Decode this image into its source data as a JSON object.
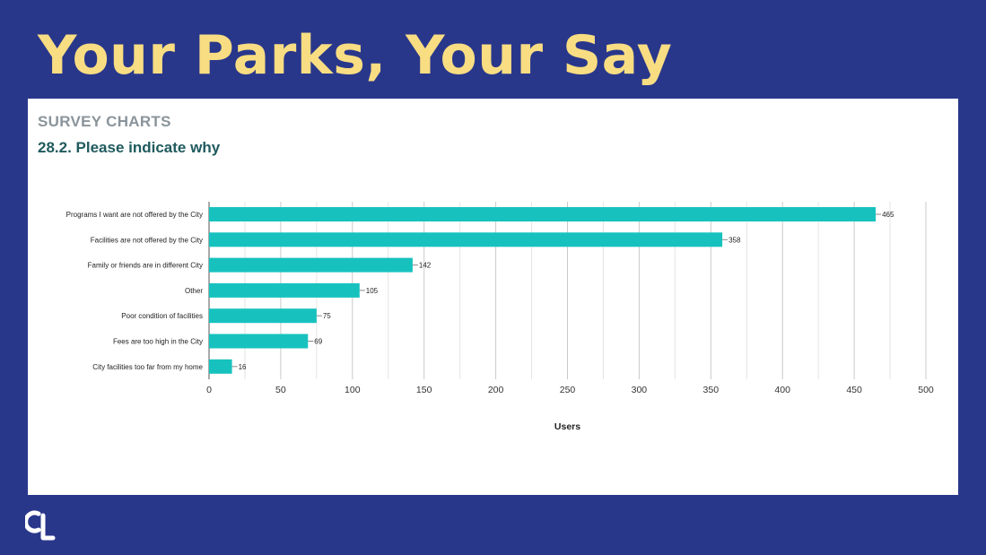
{
  "slide": {
    "title": "Your Parks, Your Say"
  },
  "card": {
    "section_label": "SURVEY CHARTS",
    "question": "28.2. Please indicate why"
  },
  "colors": {
    "background": "#29378b",
    "title": "#f8dd82",
    "bar": "#17c2be",
    "question": "#1f5a5e"
  },
  "logo": {
    "icon": "cpl-logo-icon"
  },
  "chart_data": {
    "type": "bar",
    "orientation": "horizontal",
    "categories": [
      "Programs I want are not offered by the City",
      "Facilities are not offered by the City",
      "Family or friends are in different City",
      "Other",
      "Poor condition of facilities",
      "Fees are too high in the City",
      "City facilities too far from my home"
    ],
    "values": [
      465,
      358,
      142,
      105,
      75,
      69,
      16
    ],
    "xlabel": "Users",
    "ylabel": "",
    "xlim": [
      0,
      500
    ],
    "xticks": [
      0,
      50,
      100,
      150,
      200,
      250,
      300,
      350,
      400,
      450,
      500
    ],
    "grid": true,
    "legend": "none"
  }
}
